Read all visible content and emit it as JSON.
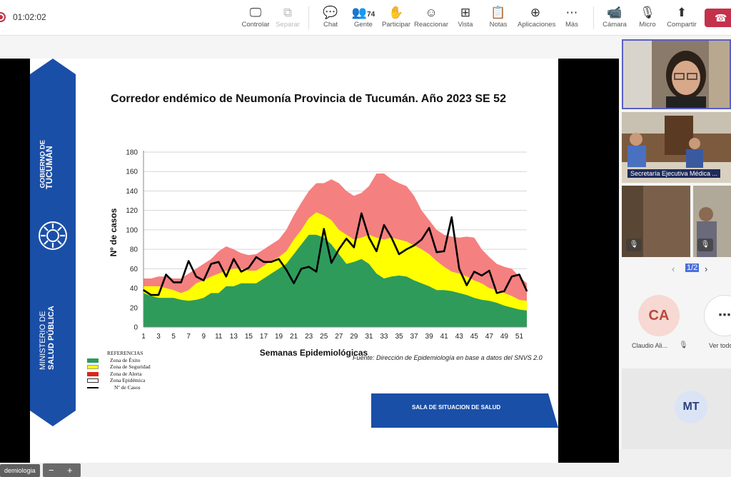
{
  "toolbar": {
    "timer": "01:02:02",
    "controlar": "Controlar",
    "separar": "Separar",
    "chat": "Chat",
    "gente": "Gente",
    "gente_count": "74",
    "participar": "Participar",
    "reaccionar": "Reaccionar",
    "vista": "Vista",
    "notas": "Notas",
    "aplicaciones": "Aplicaciones",
    "mas": "Más",
    "camara": "Cámara",
    "micro": "Micro",
    "compartir": "Compartir"
  },
  "slide": {
    "gov_line1": "GOBIERNO DE",
    "gov_line2": "TUCUMÁN",
    "min_line1": "MINISTERIO DE",
    "min_line2": "SALUD PÚBLICA",
    "fuente": "Fuente: Dirección de Epidemiología en base a datos del SNVS 2.0",
    "sala": "SALA DE SITUACION DE SALUD",
    "refs_title": "REFERENCIAS",
    "refs": [
      "Zona de Éxito",
      "Zona de Seguridad",
      "Zona de Alerta",
      "Zona Epidémica",
      "Nº de Casos"
    ],
    "tag": "demiologia",
    "zoom_minus": "−",
    "zoom_plus": "+"
  },
  "chart_data": {
    "type": "area",
    "title": "Corredor endémico de Neumonía Provincia de Tucumán. Año 2023 SE 52",
    "xlabel": "Semanas Epidemiológicas",
    "ylabel": "Nº de casos",
    "ylim": [
      0,
      180
    ],
    "yticks": [
      0,
      20,
      40,
      60,
      80,
      100,
      120,
      140,
      160,
      180
    ],
    "xticks": [
      1,
      3,
      5,
      7,
      9,
      11,
      13,
      15,
      17,
      19,
      21,
      23,
      25,
      27,
      29,
      31,
      33,
      35,
      37,
      39,
      41,
      43,
      45,
      47,
      49,
      51
    ],
    "x": [
      1,
      2,
      3,
      4,
      5,
      6,
      7,
      8,
      9,
      10,
      11,
      12,
      13,
      14,
      15,
      16,
      17,
      18,
      19,
      20,
      21,
      22,
      23,
      24,
      25,
      26,
      27,
      28,
      29,
      30,
      31,
      32,
      33,
      34,
      35,
      36,
      37,
      38,
      39,
      40,
      41,
      42,
      43,
      44,
      45,
      46,
      47,
      48,
      49,
      50,
      51,
      52
    ],
    "series": [
      {
        "name": "Zona de Éxito",
        "color": "#2e9b5b",
        "values": [
          35,
          32,
          30,
          30,
          30,
          28,
          27,
          28,
          30,
          35,
          35,
          42,
          42,
          45,
          45,
          45,
          50,
          55,
          60,
          65,
          75,
          85,
          95,
          95,
          92,
          85,
          75,
          65,
          67,
          70,
          65,
          55,
          50,
          52,
          53,
          52,
          48,
          45,
          42,
          38,
          38,
          37,
          35,
          33,
          30,
          28,
          27,
          25,
          22,
          20,
          18,
          17
        ]
      },
      {
        "name": "Zona de Seguridad",
        "color": "#ffff00",
        "values": [
          42,
          42,
          42,
          40,
          38,
          35,
          38,
          45,
          48,
          52,
          55,
          58,
          60,
          60,
          58,
          58,
          63,
          68,
          72,
          78,
          90,
          100,
          112,
          118,
          115,
          110,
          100,
          95,
          90,
          92,
          95,
          92,
          90,
          92,
          90,
          88,
          84,
          80,
          75,
          68,
          62,
          57,
          55,
          52,
          48,
          45,
          40,
          38,
          35,
          32,
          28,
          27
        ]
      },
      {
        "name": "Zona de Alerta",
        "color": "#f58080",
        "values": [
          50,
          50,
          52,
          52,
          50,
          50,
          55,
          60,
          65,
          70,
          78,
          83,
          80,
          76,
          74,
          75,
          80,
          85,
          90,
          100,
          115,
          128,
          140,
          148,
          148,
          152,
          148,
          140,
          135,
          138,
          145,
          158,
          158,
          152,
          148,
          145,
          135,
          120,
          110,
          100,
          95,
          93,
          92,
          93,
          92,
          80,
          72,
          65,
          62,
          60,
          52,
          45
        ]
      },
      {
        "name": "Nº de Casos",
        "color": "#000000",
        "values": [
          38,
          33,
          33,
          54,
          46,
          46,
          68,
          52,
          48,
          65,
          67,
          52,
          70,
          57,
          61,
          72,
          67,
          67,
          70,
          59,
          45,
          60,
          62,
          57,
          101,
          66,
          80,
          91,
          82,
          117,
          92,
          78,
          105,
          92,
          75,
          80,
          84,
          90,
          102,
          77,
          78,
          113,
          60,
          43,
          57,
          53,
          58,
          35,
          37,
          52,
          54,
          37
        ]
      }
    ]
  },
  "side": {
    "tile2_name": "Secretaría Ejecutiva Médica ...",
    "pager": "1/2",
    "ca_initials": "CA",
    "ca_name": "Claudio Ali...",
    "ver_todos": "Ver todo",
    "mt_initials": "MT"
  }
}
